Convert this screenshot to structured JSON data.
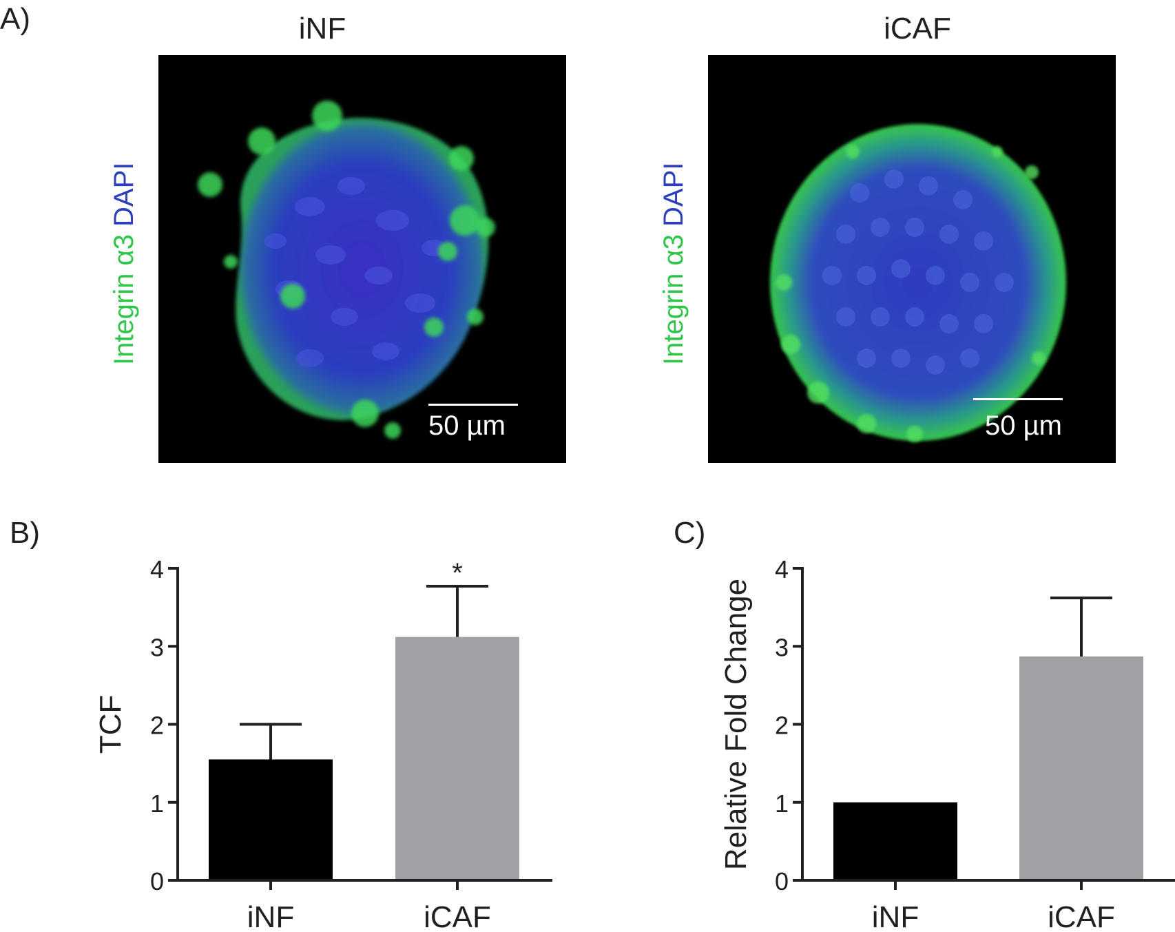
{
  "panels": {
    "a": {
      "label": "A)"
    },
    "b": {
      "label": "B)"
    },
    "c": {
      "label": "C)"
    }
  },
  "images": [
    {
      "title": "iNF",
      "stain_green": "Integrin α3",
      "stain_blue": "DAPI",
      "scale": "50 µm"
    },
    {
      "title": "iCAF",
      "stain_green": "Integrin α3",
      "stain_blue": "DAPI",
      "scale": "50 µm"
    }
  ],
  "colors": {
    "green": "#2ec648",
    "blue": "#2b3fbf",
    "dark_bar": "#000000",
    "grey_bar": "#a1a1a5",
    "text": "#231f20"
  },
  "chart_data": [
    {
      "type": "bar",
      "panel": "B",
      "categories": [
        "iNF",
        "iCAF"
      ],
      "values": [
        1.55,
        3.12
      ],
      "error_upper": [
        2.0,
        3.77
      ],
      "ylabel": "TCF",
      "xlabel": "",
      "ylim": [
        0,
        4
      ],
      "yticks": [
        "0",
        "1",
        "2",
        "3",
        "4"
      ],
      "annotations": [
        "",
        "*"
      ]
    },
    {
      "type": "bar",
      "panel": "C",
      "categories": [
        "iNF",
        "iCAF"
      ],
      "values": [
        1.0,
        2.87
      ],
      "error_upper": [
        1.0,
        3.62
      ],
      "ylabel": "Relative Fold Change",
      "xlabel": "",
      "ylim": [
        0,
        4
      ],
      "yticks": [
        "0",
        "1",
        "2",
        "3",
        "4"
      ],
      "annotations": [
        "",
        ""
      ]
    }
  ]
}
